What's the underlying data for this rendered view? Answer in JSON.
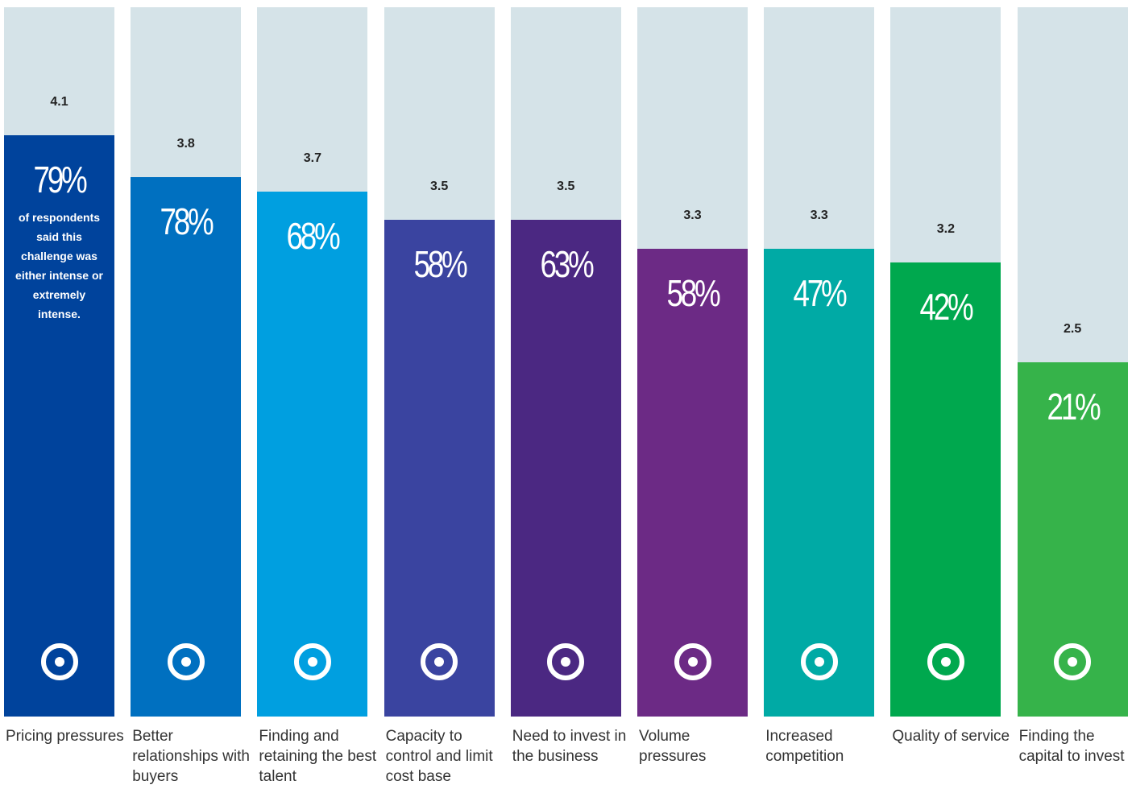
{
  "chart_data": {
    "type": "bar",
    "categories": [
      "Pricing pressures",
      "Better relationships with buyers",
      "Finding and retaining the best talent",
      "Capacity to control and limit cost base",
      "Need to invest in the business",
      "Volume pressures",
      "Increased competition",
      "Quality of service",
      "Finding the capital to invest"
    ],
    "values": [
      4.1,
      3.8,
      3.7,
      3.5,
      3.5,
      3.3,
      3.3,
      3.2,
      2.5
    ],
    "percent": [
      79,
      78,
      68,
      58,
      63,
      58,
      47,
      42,
      21
    ],
    "percent_labels": [
      "79%",
      "78%",
      "68%",
      "58%",
      "63%",
      "58%",
      "47%",
      "42%",
      "21%"
    ],
    "colors": [
      "#00439c",
      "#0070c0",
      "#009fe0",
      "#3a44a0",
      "#4b2882",
      "#6c2a85",
      "#00aaa5",
      "#00a84e",
      "#36b34a"
    ],
    "background_color": "#d5e3e8",
    "annotation": "of respondents said this challenge was either intense or extremely intense.",
    "ylim": [
      0,
      5
    ]
  }
}
